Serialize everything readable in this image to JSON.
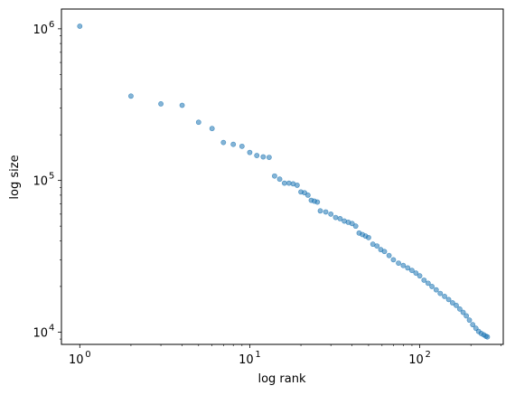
{
  "chart_data": {
    "type": "scatter",
    "xscale": "log",
    "yscale": "log",
    "xlabel": "log rank",
    "ylabel": "log size",
    "xlim": [
      0.78,
      310
    ],
    "ylim": [
      8300,
      1350000
    ],
    "grid": false,
    "marker_color": "#1f77b4",
    "x_ticks": [
      {
        "value": 1,
        "base": "10",
        "exp": "0"
      },
      {
        "value": 10,
        "base": "10",
        "exp": "1"
      },
      {
        "value": 100,
        "base": "10",
        "exp": "2"
      }
    ],
    "y_ticks": [
      {
        "value": 10000,
        "base": "10",
        "exp": "4"
      },
      {
        "value": 100000,
        "base": "10",
        "exp": "5"
      },
      {
        "value": 1000000,
        "base": "10",
        "exp": "6"
      }
    ],
    "points": [
      [
        1,
        1040000
      ],
      [
        2,
        360000
      ],
      [
        3,
        320000
      ],
      [
        4,
        313000
      ],
      [
        5,
        242000
      ],
      [
        6,
        220000
      ],
      [
        7,
        178000
      ],
      [
        8,
        173000
      ],
      [
        9,
        168000
      ],
      [
        10,
        153000
      ],
      [
        11,
        146000
      ],
      [
        12,
        143000
      ],
      [
        13,
        142000
      ],
      [
        14,
        107000
      ],
      [
        15,
        102000
      ],
      [
        16,
        96000
      ],
      [
        17,
        96000
      ],
      [
        18,
        95000
      ],
      [
        19,
        93000
      ],
      [
        20,
        84000
      ],
      [
        21,
        83000
      ],
      [
        22,
        80000
      ],
      [
        23,
        74000
      ],
      [
        24,
        73000
      ],
      [
        25,
        72000
      ],
      [
        26,
        63000
      ],
      [
        28,
        62000
      ],
      [
        30,
        60000
      ],
      [
        32,
        57000
      ],
      [
        34,
        56000
      ],
      [
        36,
        54000
      ],
      [
        38,
        53000
      ],
      [
        40,
        52000
      ],
      [
        42,
        50000
      ],
      [
        44,
        45000
      ],
      [
        46,
        44000
      ],
      [
        48,
        43000
      ],
      [
        50,
        42000
      ],
      [
        53,
        38000
      ],
      [
        56,
        37000
      ],
      [
        59,
        35000
      ],
      [
        62,
        34000
      ],
      [
        66,
        32000
      ],
      [
        70,
        30000
      ],
      [
        75,
        28500
      ],
      [
        80,
        27500
      ],
      [
        85,
        26500
      ],
      [
        90,
        25500
      ],
      [
        95,
        24500
      ],
      [
        100,
        23500
      ],
      [
        106,
        22000
      ],
      [
        112,
        21000
      ],
      [
        118,
        20000
      ],
      [
        125,
        19000
      ],
      [
        132,
        18000
      ],
      [
        140,
        17200
      ],
      [
        148,
        16400
      ],
      [
        156,
        15600
      ],
      [
        164,
        15000
      ],
      [
        172,
        14200
      ],
      [
        180,
        13500
      ],
      [
        188,
        12800
      ],
      [
        196,
        12000
      ],
      [
        205,
        11200
      ],
      [
        214,
        10600
      ],
      [
        222,
        10100
      ],
      [
        230,
        9800
      ],
      [
        238,
        9600
      ],
      [
        245,
        9400
      ],
      [
        250,
        9300
      ]
    ]
  }
}
